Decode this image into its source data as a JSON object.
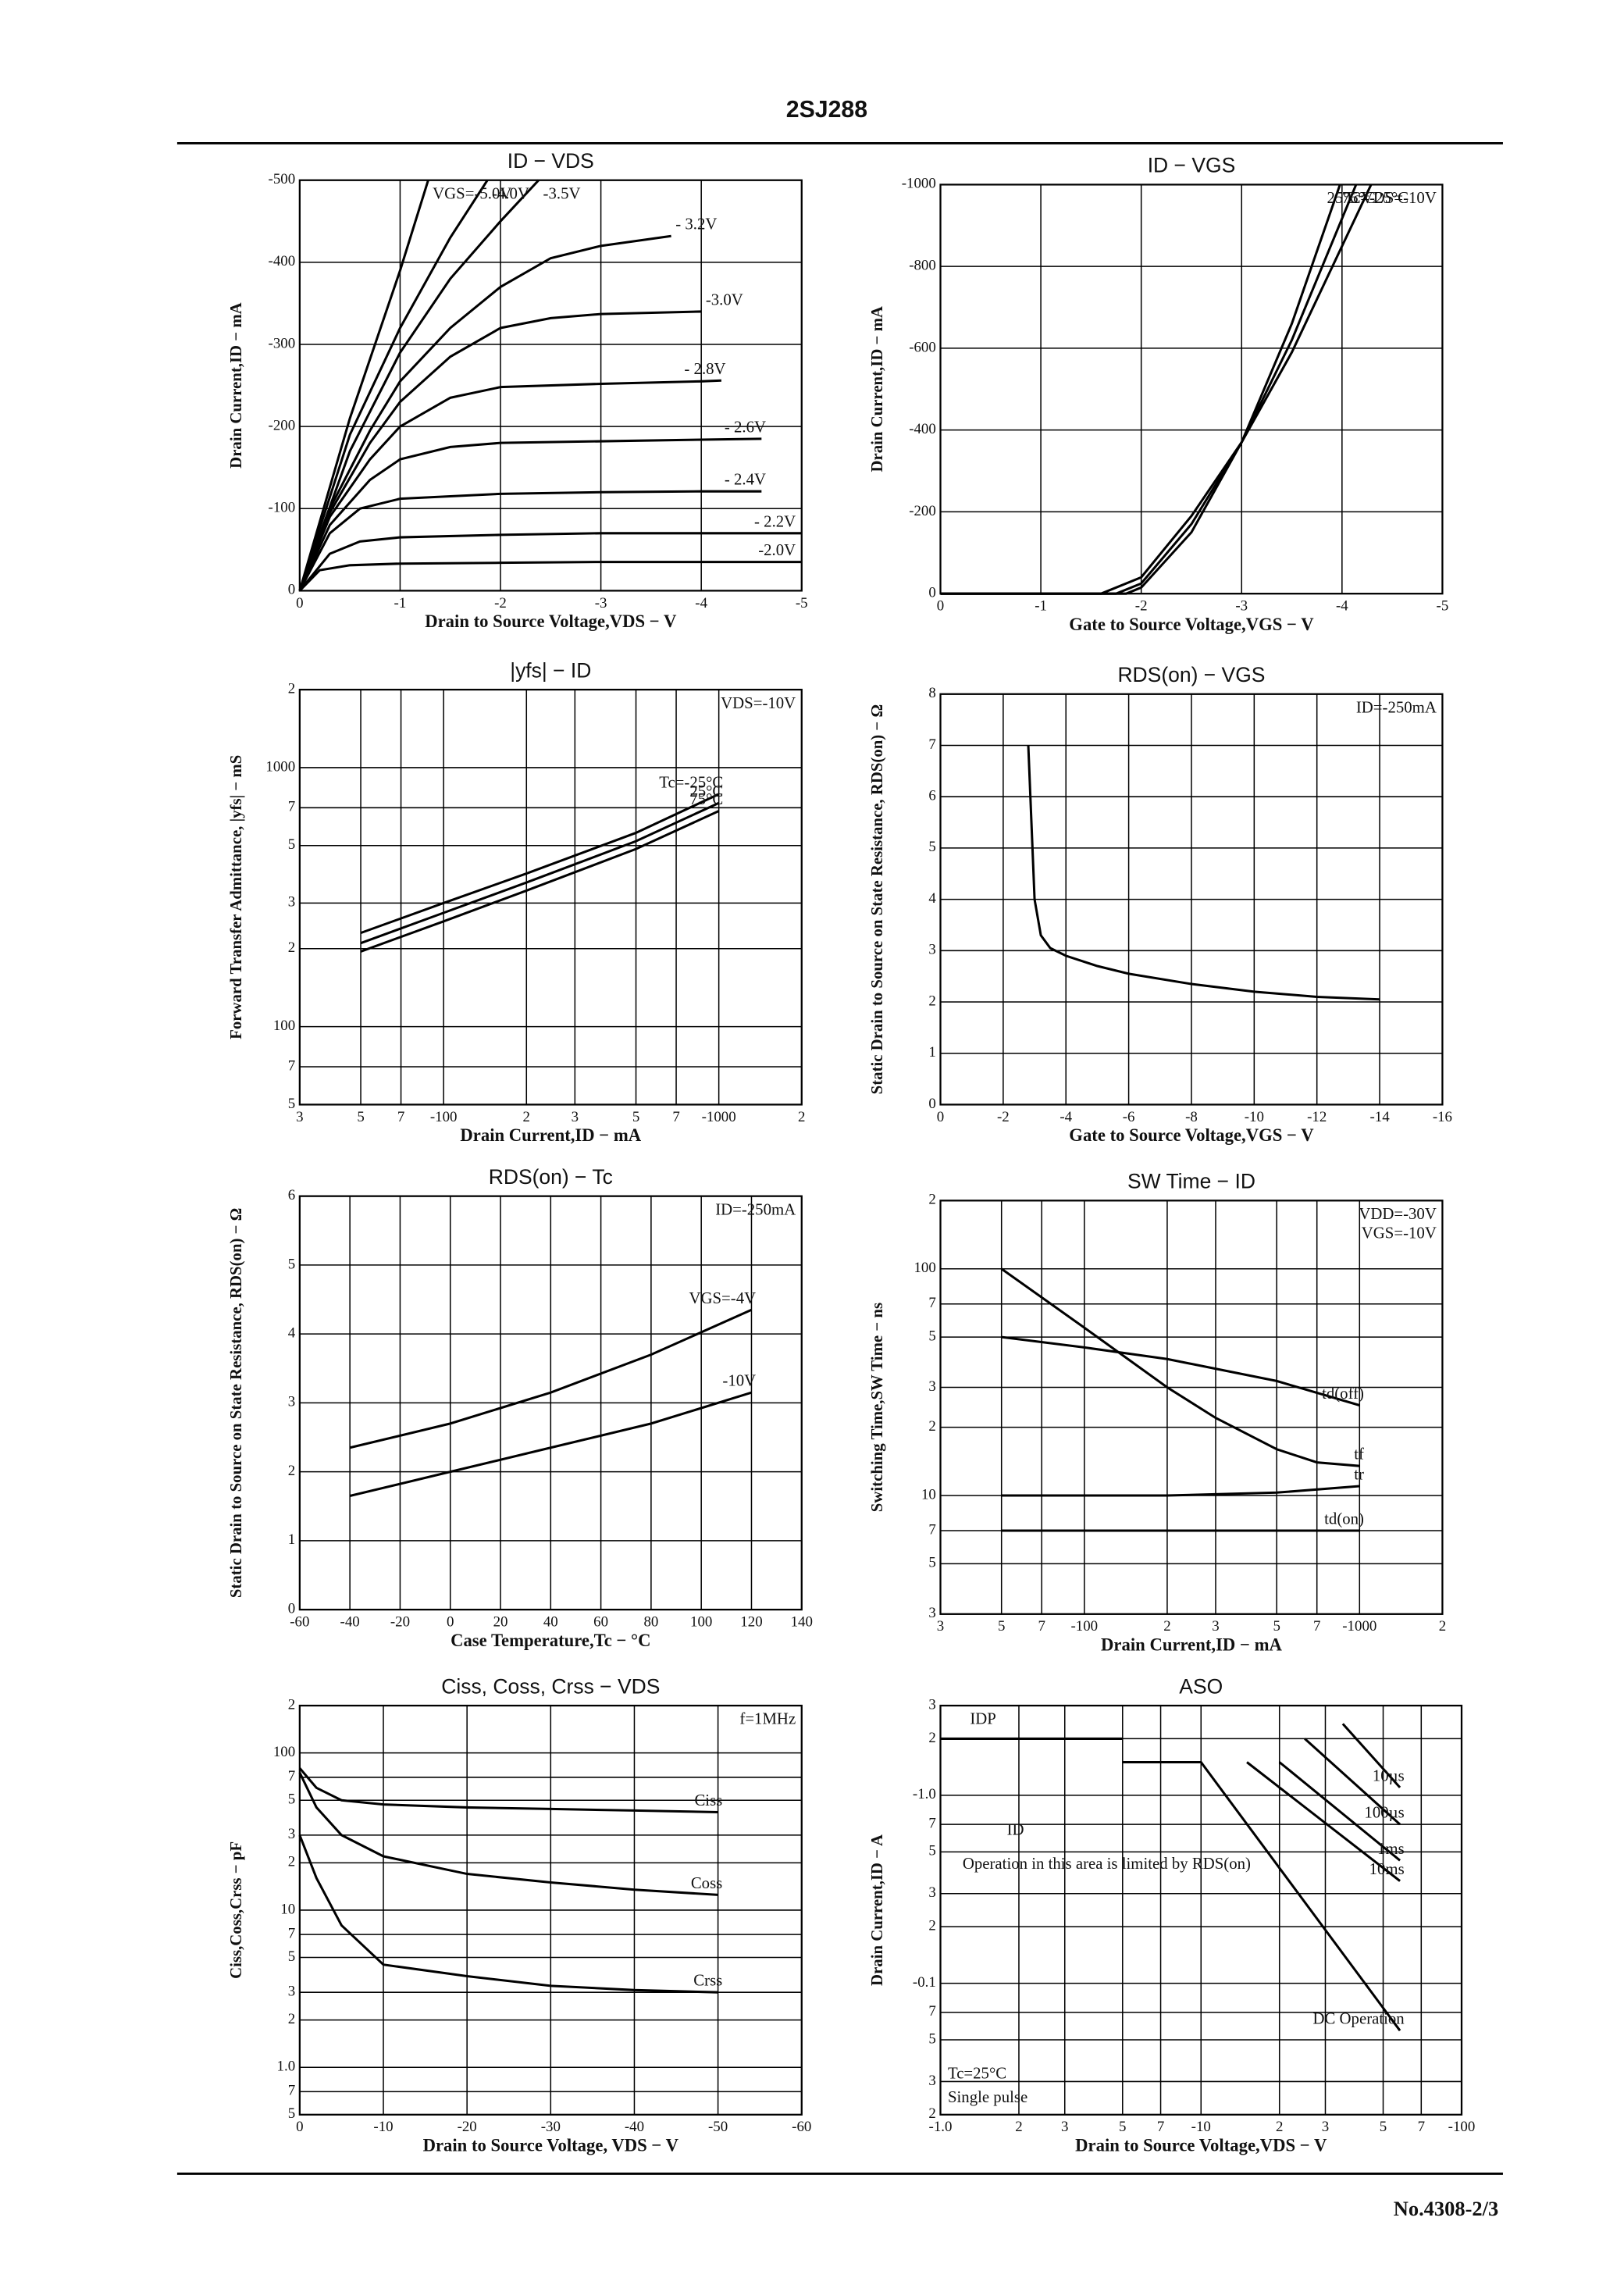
{
  "header": {
    "title": "2SJ288"
  },
  "footer": {
    "page": "No.4308-2/3"
  },
  "chart_data": [
    {
      "type": "line",
      "title": "ID − VDS",
      "xlabel": "Drain to Source Voltage,VDS − V",
      "ylabel": "Drain Current,ID − mA",
      "xlim": [
        0,
        -5
      ],
      "ylim": [
        0,
        -500
      ],
      "xticks": [
        0,
        -1,
        -2,
        -3,
        -4,
        -5
      ],
      "yticks": [
        0,
        -100,
        -200,
        -300,
        -400,
        -500
      ],
      "grid": true,
      "series": [
        {
          "name": "-2.0V",
          "x": [
            0,
            -0.2,
            -0.5,
            -1,
            -2,
            -3,
            -4,
            -5
          ],
          "values": [
            0,
            -25,
            -31,
            -33,
            -34,
            -35,
            -35,
            -35
          ]
        },
        {
          "name": "- 2.2V",
          "x": [
            0,
            -0.3,
            -0.6,
            -1,
            -2,
            -3,
            -4,
            -5
          ],
          "values": [
            0,
            -45,
            -60,
            -65,
            -68,
            -70,
            -70,
            -70
          ]
        },
        {
          "name": "- 2.4V",
          "x": [
            0,
            -0.3,
            -0.6,
            -1,
            -2,
            -3,
            -4,
            -4.6
          ],
          "values": [
            0,
            -70,
            -100,
            -112,
            -118,
            -120,
            -121,
            -121
          ]
        },
        {
          "name": "- 2.6V",
          "x": [
            0,
            -0.3,
            -0.7,
            -1,
            -1.5,
            -2,
            -3,
            -4,
            -4.6
          ],
          "values": [
            0,
            -80,
            -135,
            -160,
            -175,
            -180,
            -182,
            -184,
            -185
          ]
        },
        {
          "name": "- 2.8V",
          "x": [
            0,
            -0.3,
            -0.7,
            -1,
            -1.5,
            -2,
            -3,
            -4,
            -4.2
          ],
          "values": [
            0,
            -90,
            -160,
            -200,
            -235,
            -248,
            -252,
            -255,
            -256
          ]
        },
        {
          "name": "-3.0V",
          "x": [
            0,
            -0.3,
            -0.7,
            -1,
            -1.5,
            -2,
            -2.5,
            -3,
            -4
          ],
          "values": [
            0,
            -95,
            -180,
            -230,
            -285,
            -320,
            -332,
            -337,
            -340
          ]
        },
        {
          "name": "- 3.2V",
          "x": [
            0,
            -0.3,
            -0.7,
            -1,
            -1.5,
            -2,
            -2.5,
            -3,
            -3.7
          ],
          "values": [
            0,
            -100,
            -195,
            -255,
            -320,
            -370,
            -405,
            -420,
            -432
          ]
        },
        {
          "name": "-3.5V",
          "x": [
            0,
            -0.5,
            -1,
            -1.5,
            -2,
            -2.38
          ],
          "values": [
            0,
            -170,
            -290,
            -380,
            -450,
            -500
          ]
        },
        {
          "name": "-4.0V",
          "x": [
            0,
            -0.5,
            -1,
            -1.5,
            -1.87
          ],
          "values": [
            0,
            -190,
            -320,
            -430,
            -500
          ]
        },
        {
          "name": "VGS=-5.0V",
          "x": [
            0,
            -0.5,
            -1,
            -1.28
          ],
          "values": [
            0,
            -210,
            -390,
            -500
          ]
        }
      ]
    },
    {
      "type": "line",
      "title": "ID − VGS",
      "xlabel": "Gate to Source Voltage,VGS − V",
      "ylabel": "Drain Current,ID − mA",
      "xlim": [
        0,
        -5
      ],
      "ylim": [
        0,
        -1000
      ],
      "xticks": [
        0,
        -1,
        -2,
        -3,
        -4,
        -5
      ],
      "yticks": [
        0,
        -200,
        -400,
        -600,
        -800,
        -1000
      ],
      "grid": true,
      "annotations": [
        "VDS=-10V"
      ],
      "series": [
        {
          "name": "Tc=-25°C",
          "x": [
            0,
            -1.85,
            -2,
            -2.5,
            -3,
            -3.5,
            -3.98
          ],
          "values": [
            0,
            0,
            -15,
            -150,
            -370,
            -660,
            -1000
          ]
        },
        {
          "name": "25°C",
          "x": [
            0,
            -1.75,
            -2,
            -2.5,
            -3,
            -3.5,
            -4.14
          ],
          "values": [
            0,
            0,
            -25,
            -170,
            -370,
            -620,
            -1000
          ]
        },
        {
          "name": "75°C",
          "x": [
            0,
            -1.6,
            -2,
            -2.5,
            -3,
            -3.5,
            -4.29
          ],
          "values": [
            0,
            0,
            -40,
            -190,
            -370,
            -590,
            -1000
          ]
        }
      ]
    },
    {
      "type": "line",
      "title": "|yfs| − ID",
      "xlabel": "Drain Current,ID − mA",
      "ylabel": "Forward Transfer Admittance, |yfs| − mS",
      "xlog": true,
      "ylog": true,
      "xlim": [
        -30,
        -2000
      ],
      "ylim": [
        50,
        2000
      ],
      "xticks": [
        {
          "value": -30,
          "label": "3"
        },
        {
          "value": -50,
          "label": "5"
        },
        {
          "value": -70,
          "label": "7"
        },
        -100,
        {
          "value": -200,
          "label": "2"
        },
        {
          "value": -300,
          "label": "3"
        },
        {
          "value": -500,
          "label": "5"
        },
        {
          "value": -700,
          "label": "7"
        },
        -1000,
        {
          "value": -2000,
          "label": "2"
        }
      ],
      "yticks": [
        {
          "value": 50,
          "label": "5"
        },
        {
          "value": 70,
          "label": "7"
        },
        100,
        {
          "value": 200,
          "label": "2"
        },
        {
          "value": 300,
          "label": "3"
        },
        {
          "value": 500,
          "label": "5"
        },
        {
          "value": 700,
          "label": "7"
        },
        1000,
        {
          "value": 2000,
          "label": "2"
        }
      ],
      "grid": true,
      "annotations": [
        "VDS=-10V"
      ],
      "series": [
        {
          "name": "Tc=-25°C",
          "x": [
            -50,
            -100,
            -200,
            -500,
            -1000
          ],
          "values": [
            230,
            300,
            390,
            560,
            790
          ]
        },
        {
          "name": "25°C",
          "x": [
            -50,
            -100,
            -200,
            -500,
            -1000
          ],
          "values": [
            210,
            275,
            360,
            520,
            730
          ]
        },
        {
          "name": "75°C",
          "x": [
            -50,
            -100,
            -200,
            -500,
            -1000
          ],
          "values": [
            195,
            255,
            335,
            485,
            680
          ]
        }
      ]
    },
    {
      "type": "line",
      "title": "RDS(on) − VGS",
      "xlabel": "Gate to Source Voltage,VGS − V",
      "ylabel": "Static Drain to Source on State Resistance, RDS(on) − Ω",
      "xlim": [
        0,
        -16
      ],
      "ylim": [
        0,
        8
      ],
      "xticks": [
        0,
        -2,
        -4,
        -6,
        -8,
        -10,
        -12,
        -14,
        -16
      ],
      "yticks": [
        0,
        1,
        2,
        3,
        4,
        5,
        6,
        7,
        8
      ],
      "grid": true,
      "annotations": [
        "ID=-250mA"
      ],
      "series": [
        {
          "x": [
            -2.8,
            -2.9,
            -3,
            -3.2,
            -3.5,
            -4,
            -5,
            -6,
            -8,
            -10,
            -12,
            -14
          ],
          "values": [
            7,
            5.5,
            4,
            3.3,
            3.05,
            2.9,
            2.7,
            2.55,
            2.35,
            2.2,
            2.1,
            2.05
          ]
        }
      ]
    },
    {
      "type": "line",
      "title": "RDS(on) − Tc",
      "xlabel": "Case Temperature,Tc − °C",
      "ylabel": "Static Drain to Source on State Resistance, RDS(on) − Ω",
      "xlim": [
        -60,
        140
      ],
      "ylim": [
        0,
        6
      ],
      "xticks": [
        -60,
        -40,
        -20,
        0,
        20,
        40,
        60,
        80,
        100,
        120,
        140
      ],
      "yticks": [
        0,
        1,
        2,
        3,
        4,
        5,
        6
      ],
      "grid": true,
      "annotations": [
        "ID=-250mA"
      ],
      "series": [
        {
          "name": "VGS=-4V",
          "x": [
            -40,
            0,
            40,
            80,
            120
          ],
          "values": [
            2.35,
            2.7,
            3.15,
            3.7,
            4.35
          ]
        },
        {
          "name": "-10V",
          "x": [
            -40,
            0,
            40,
            80,
            120
          ],
          "values": [
            1.65,
            2.0,
            2.35,
            2.7,
            3.15
          ]
        }
      ]
    },
    {
      "type": "line",
      "title": "SW Time − ID",
      "xlabel": "Drain Current,ID − mA",
      "ylabel": "Switching Time,SW Time − ns",
      "xlog": true,
      "ylog": true,
      "xlim": [
        -30,
        -2000
      ],
      "ylim": [
        3,
        200
      ],
      "xticks": [
        {
          "value": -30,
          "label": "3"
        },
        {
          "value": -50,
          "label": "5"
        },
        {
          "value": -70,
          "label": "7"
        },
        -100,
        {
          "value": -200,
          "label": "2"
        },
        {
          "value": -300,
          "label": "3"
        },
        {
          "value": -500,
          "label": "5"
        },
        {
          "value": -700,
          "label": "7"
        },
        -1000,
        {
          "value": -2000,
          "label": "2"
        }
      ],
      "yticks": [
        3,
        5,
        7,
        10,
        {
          "value": 20,
          "label": "2"
        },
        {
          "value": 30,
          "label": "3"
        },
        {
          "value": 50,
          "label": "5"
        },
        {
          "value": 70,
          "label": "7"
        },
        100,
        {
          "value": 200,
          "label": "2"
        }
      ],
      "grid": true,
      "annotations": [
        "VDD=-30V",
        "VGS=-10V"
      ],
      "series": [
        {
          "name": "td(off)",
          "x": [
            -50,
            -100,
            -200,
            -500,
            -1000
          ],
          "values": [
            50,
            45,
            40,
            32,
            25
          ]
        },
        {
          "name": "tf",
          "x": [
            -50,
            -100,
            -200,
            -300,
            -500,
            -700,
            -1000
          ],
          "values": [
            100,
            55,
            30,
            22,
            16,
            14,
            13.5
          ]
        },
        {
          "name": "tr",
          "x": [
            -50,
            -200,
            -500,
            -1000
          ],
          "values": [
            10,
            10,
            10.3,
            11
          ]
        },
        {
          "name": "td(on)",
          "x": [
            -50,
            -1000
          ],
          "values": [
            7,
            7
          ]
        }
      ]
    },
    {
      "type": "line",
      "title": "Ciss, Coss, Crss − VDS",
      "xlabel": "Drain to Source Voltage, VDS − V",
      "ylabel": "Ciss,Coss,Crss − pF",
      "ylog": true,
      "xlim": [
        0,
        -60
      ],
      "ylim": [
        0.5,
        200
      ],
      "xticks": [
        0,
        -10,
        -20,
        -30,
        -40,
        -50,
        -60
      ],
      "yticks": [
        {
          "value": 0.5,
          "label": "5"
        },
        {
          "value": 0.7,
          "label": "7"
        },
        {
          "value": 1,
          "label": "1.0"
        },
        2,
        3,
        5,
        7,
        10,
        {
          "value": 20,
          "label": "2"
        },
        {
          "value": 30,
          "label": "3"
        },
        {
          "value": 50,
          "label": "5"
        },
        {
          "value": 70,
          "label": "7"
        },
        100,
        {
          "value": 200,
          "label": "2"
        }
      ],
      "grid": true,
      "annotations": [
        "f=1MHz"
      ],
      "series": [
        {
          "name": "Ciss",
          "x": [
            0,
            -2,
            -5,
            -10,
            -20,
            -30,
            -40,
            -50
          ],
          "values": [
            80,
            60,
            50,
            47,
            45,
            44,
            43,
            42
          ]
        },
        {
          "name": "Coss",
          "x": [
            0,
            -2,
            -5,
            -10,
            -20,
            -30,
            -40,
            -50
          ],
          "values": [
            75,
            45,
            30,
            22,
            17,
            15,
            13.5,
            12.5
          ]
        },
        {
          "name": "Crss",
          "x": [
            0,
            -2,
            -5,
            -10,
            -20,
            -30,
            -40,
            -50
          ],
          "values": [
            30,
            16,
            8,
            4.5,
            3.8,
            3.3,
            3.1,
            3.0
          ]
        }
      ]
    },
    {
      "type": "line",
      "title": "ASO",
      "xlabel": "Drain to Source Voltage,VDS − V",
      "ylabel": "Drain Current,ID − A",
      "xlog": true,
      "ylog": true,
      "xlim": [
        -1,
        -100
      ],
      "ylim": [
        -0.02,
        -3
      ],
      "xticks": [
        {
          "value": -1,
          "label": "-1.0"
        },
        {
          "value": -2,
          "label": "2"
        },
        {
          "value": -3,
          "label": "3"
        },
        {
          "value": -5,
          "label": "5"
        },
        {
          "value": -7,
          "label": "7"
        },
        -10,
        {
          "value": -20,
          "label": "2"
        },
        {
          "value": -30,
          "label": "3"
        },
        {
          "value": -50,
          "label": "5"
        },
        {
          "value": -70,
          "label": "7"
        },
        -100
      ],
      "yticks": [
        {
          "value": -0.02,
          "label": "2"
        },
        {
          "value": -0.03,
          "label": "3"
        },
        {
          "value": -0.05,
          "label": "5"
        },
        {
          "value": -0.07,
          "label": "7"
        },
        -0.1,
        {
          "value": -0.2,
          "label": "2"
        },
        {
          "value": -0.3,
          "label": "3"
        },
        {
          "value": -0.5,
          "label": "5"
        },
        {
          "value": -0.7,
          "label": "7"
        },
        {
          "value": -1,
          "label": "-1.0"
        },
        {
          "value": -2,
          "label": "2"
        },
        {
          "value": -3,
          "label": "3"
        }
      ],
      "grid": true,
      "annotations": [
        "IDP",
        "ID",
        "Operation in this area is limited by RDS(on)",
        "Tc=25°C",
        "Single pulse"
      ],
      "series": [
        {
          "x": [
            -1,
            -5
          ],
          "values": [
            -2,
            -2
          ]
        },
        {
          "name": "10µs",
          "x": [
            -35,
            -58
          ],
          "values": [
            -2.4,
            -1.1
          ]
        },
        {
          "name": "100µs",
          "x": [
            -25,
            -58
          ],
          "values": [
            -2.0,
            -0.7
          ]
        },
        {
          "name": "1ms",
          "x": [
            -20,
            -58
          ],
          "values": [
            -1.5,
            -0.45
          ]
        },
        {
          "name": "10ms",
          "x": [
            -15,
            -58
          ],
          "values": [
            -1.5,
            -0.35
          ]
        },
        {
          "name": "DC Operation",
          "x": [
            -5,
            -10,
            -58
          ],
          "values": [
            -1.5,
            -1.5,
            -0.056
          ]
        }
      ]
    }
  ]
}
